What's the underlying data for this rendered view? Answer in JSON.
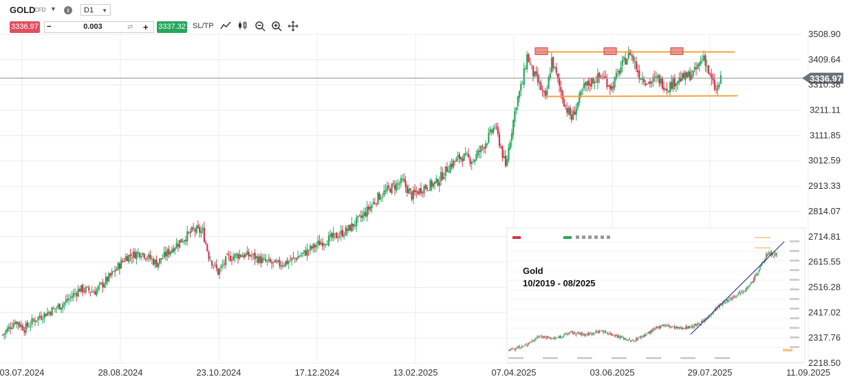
{
  "toolbar": {
    "symbol": "GOLD",
    "symbol_tag": "CFD",
    "info_icon": "i",
    "timeframe": "D1",
    "bid": "3336.97",
    "quantity": "0.003",
    "minus": "−",
    "plus": "+",
    "ask": "3337.32",
    "sltp": "SL/TP",
    "tools": [
      "line-chart-icon",
      "candles-icon",
      "zoom-out-icon",
      "zoom-in-icon",
      "move-icon"
    ]
  },
  "colors": {
    "up": "#26a65b",
    "down": "#d6334a",
    "resistance": "#f7a23b",
    "resistance_box": "#e8756f",
    "grid": "#ececec",
    "price_line": "#8a8a8a",
    "price_tag_bg": "#6b7178",
    "trendline": "#2b3a9a"
  },
  "inset": {
    "title": "Gold",
    "range": "10/2019 - 08/2025"
  },
  "chart_data": {
    "type": "candlestick",
    "y_ticks": [
      "3508.90",
      "3409.64",
      "3310.38",
      "3211.11",
      "3111.85",
      "3012.59",
      "2913.33",
      "2814.07",
      "2714.81",
      "2615.55",
      "2516.28",
      "2417.02",
      "2317.76",
      "2218.50"
    ],
    "y_range": [
      2218.5,
      3508.9
    ],
    "x_ticks": [
      "03.07.2024",
      "28.08.2024",
      "23.10.2024",
      "17.12.2024",
      "13.02.2025",
      "07.04.2025",
      "03.06.2025",
      "29.07.2025",
      "11.09.2025"
    ],
    "current_price": "3336.97",
    "current_price_value": 3336.97,
    "close_anchors": [
      [
        0,
        2330
      ],
      [
        8,
        2385
      ],
      [
        14,
        2355
      ],
      [
        22,
        2395
      ],
      [
        30,
        2420
      ],
      [
        40,
        2455
      ],
      [
        50,
        2510
      ],
      [
        60,
        2500
      ],
      [
        70,
        2560
      ],
      [
        80,
        2635
      ],
      [
        90,
        2655
      ],
      [
        100,
        2610
      ],
      [
        112,
        2680
      ],
      [
        124,
        2740
      ],
      [
        130,
        2735
      ],
      [
        134,
        2640
      ],
      [
        140,
        2575
      ],
      [
        146,
        2630
      ],
      [
        154,
        2645
      ],
      [
        162,
        2640
      ],
      [
        170,
        2618
      ],
      [
        178,
        2605
      ],
      [
        186,
        2618
      ],
      [
        196,
        2650
      ],
      [
        206,
        2690
      ],
      [
        216,
        2715
      ],
      [
        224,
        2740
      ],
      [
        234,
        2795
      ],
      [
        244,
        2870
      ],
      [
        252,
        2905
      ],
      [
        260,
        2930
      ],
      [
        266,
        2875
      ],
      [
        274,
        2910
      ],
      [
        282,
        2925
      ],
      [
        290,
        2990
      ],
      [
        298,
        3030
      ],
      [
        306,
        3015
      ],
      [
        314,
        3085
      ],
      [
        320,
        3150
      ],
      [
        324,
        3065
      ],
      [
        327,
        2985
      ],
      [
        330,
        3100
      ],
      [
        334,
        3240
      ],
      [
        338,
        3320
      ],
      [
        341,
        3425
      ],
      [
        345,
        3355
      ],
      [
        349,
        3310
      ],
      [
        353,
        3250
      ],
      [
        357,
        3410
      ],
      [
        362,
        3305
      ],
      [
        366,
        3225
      ],
      [
        370,
        3180
      ],
      [
        374,
        3240
      ],
      [
        378,
        3300
      ],
      [
        384,
        3330
      ],
      [
        390,
        3345
      ],
      [
        396,
        3300
      ],
      [
        402,
        3380
      ],
      [
        408,
        3440
      ],
      [
        414,
        3350
      ],
      [
        420,
        3320
      ],
      [
        426,
        3335
      ],
      [
        432,
        3300
      ],
      [
        438,
        3330
      ],
      [
        444,
        3340
      ],
      [
        450,
        3360
      ],
      [
        456,
        3425
      ],
      [
        460,
        3340
      ],
      [
        464,
        3285
      ],
      [
        468,
        3345
      ],
      [
        474,
        3385
      ],
      [
        480,
        3370
      ],
      [
        484,
        3330
      ],
      [
        486,
        3336.97
      ]
    ],
    "resistance_level": 3440,
    "support_level": 3265,
    "inset_close_anchors": [
      [
        0,
        1480
      ],
      [
        20,
        1560
      ],
      [
        40,
        1750
      ],
      [
        60,
        1700
      ],
      [
        80,
        1820
      ],
      [
        100,
        1780
      ],
      [
        120,
        1850
      ],
      [
        140,
        1760
      ],
      [
        160,
        1650
      ],
      [
        180,
        1800
      ],
      [
        200,
        1970
      ],
      [
        220,
        1900
      ],
      [
        240,
        1940
      ],
      [
        255,
        2050
      ],
      [
        270,
        2300
      ],
      [
        285,
        2450
      ],
      [
        300,
        2600
      ],
      [
        312,
        2700
      ],
      [
        324,
        3000
      ],
      [
        336,
        3350
      ],
      [
        348,
        3330
      ]
    ],
    "inset_y_range": [
      1400,
      3600
    ]
  }
}
